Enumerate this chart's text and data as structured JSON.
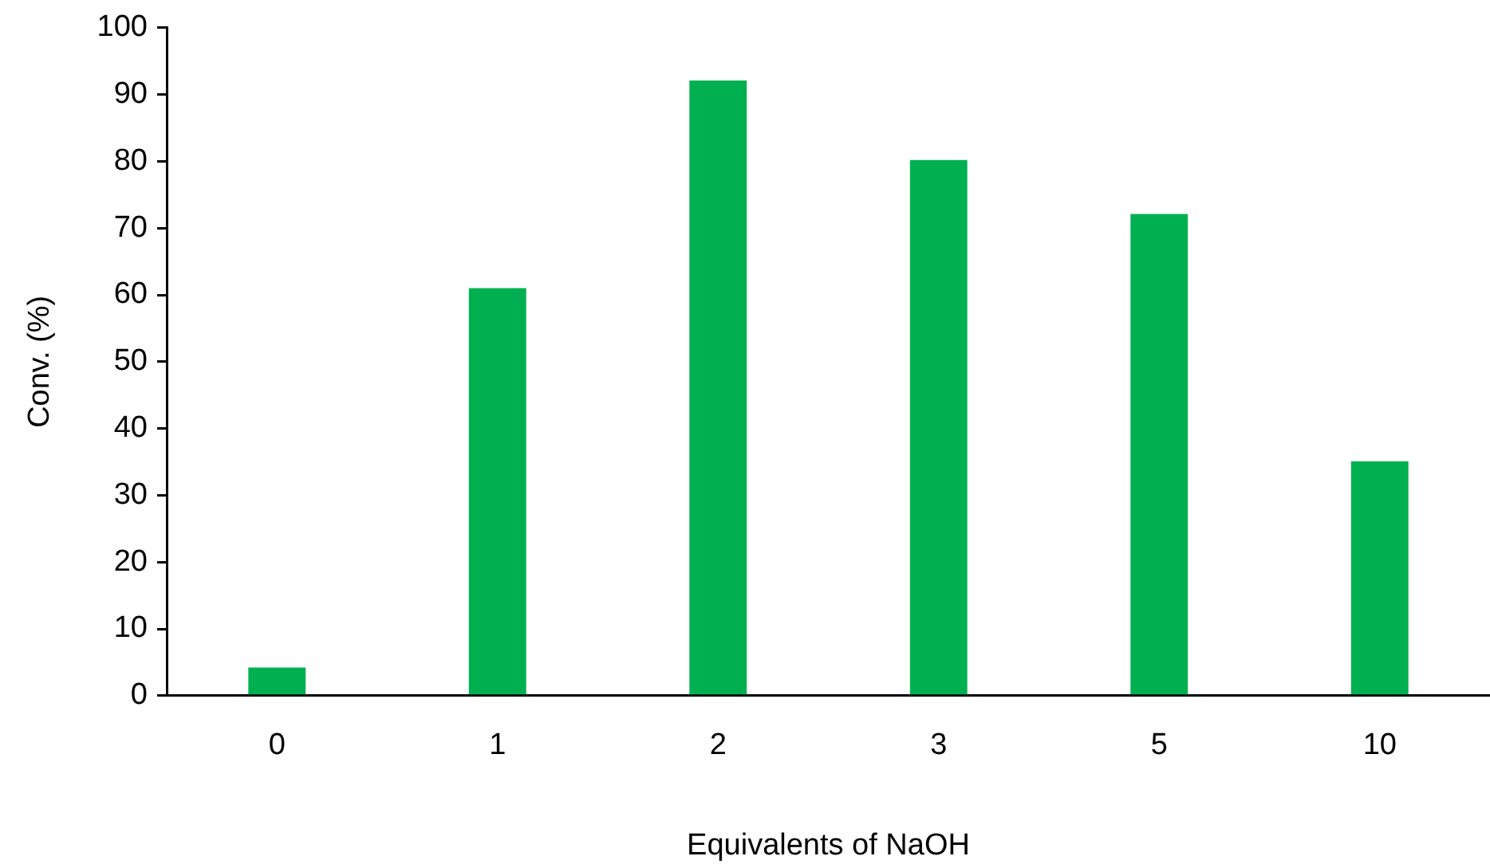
{
  "chart_data": {
    "type": "bar",
    "xlabel": "Equivalents of NaOH",
    "ylabel": "Conv. (%)",
    "categories": [
      "0",
      "1",
      "2",
      "3",
      "5",
      "10"
    ],
    "values": [
      4.2,
      61,
      92.1,
      80.2,
      72.1,
      35.1
    ],
    "color": "#00b050",
    "ylim": [
      0,
      100
    ],
    "yticks": [
      0,
      10,
      20,
      30,
      40,
      50,
      60,
      70,
      80,
      90,
      100
    ],
    "grid": false,
    "legend": false
  }
}
